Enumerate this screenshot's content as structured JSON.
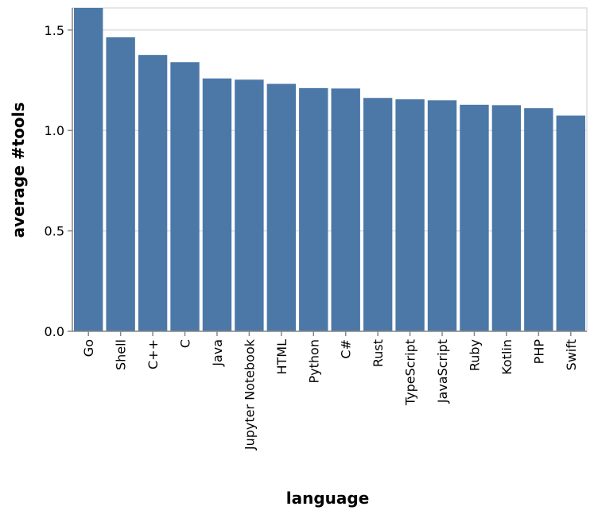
{
  "chart_data": {
    "type": "bar",
    "xlabel": "language",
    "ylabel": "average #tools",
    "categories": [
      "Go",
      "Shell",
      "C++",
      "C",
      "Java",
      "Jupyter Notebook",
      "HTML",
      "Python",
      "C#",
      "Rust",
      "TypeScript",
      "JavaScript",
      "Ruby",
      "Kotlin",
      "PHP",
      "Swift"
    ],
    "values": [
      1.61,
      1.464,
      1.376,
      1.34,
      1.259,
      1.253,
      1.232,
      1.211,
      1.209,
      1.162,
      1.155,
      1.15,
      1.128,
      1.126,
      1.111,
      1.074
    ],
    "ylim": [
      0,
      1.61
    ],
    "yticks": [
      0.0,
      0.5,
      1.0,
      1.5
    ],
    "ytick_labels": [
      "0.0",
      "0.5",
      "1.0",
      "1.5"
    ],
    "grid": true,
    "bar_color": "#4c78a8"
  }
}
